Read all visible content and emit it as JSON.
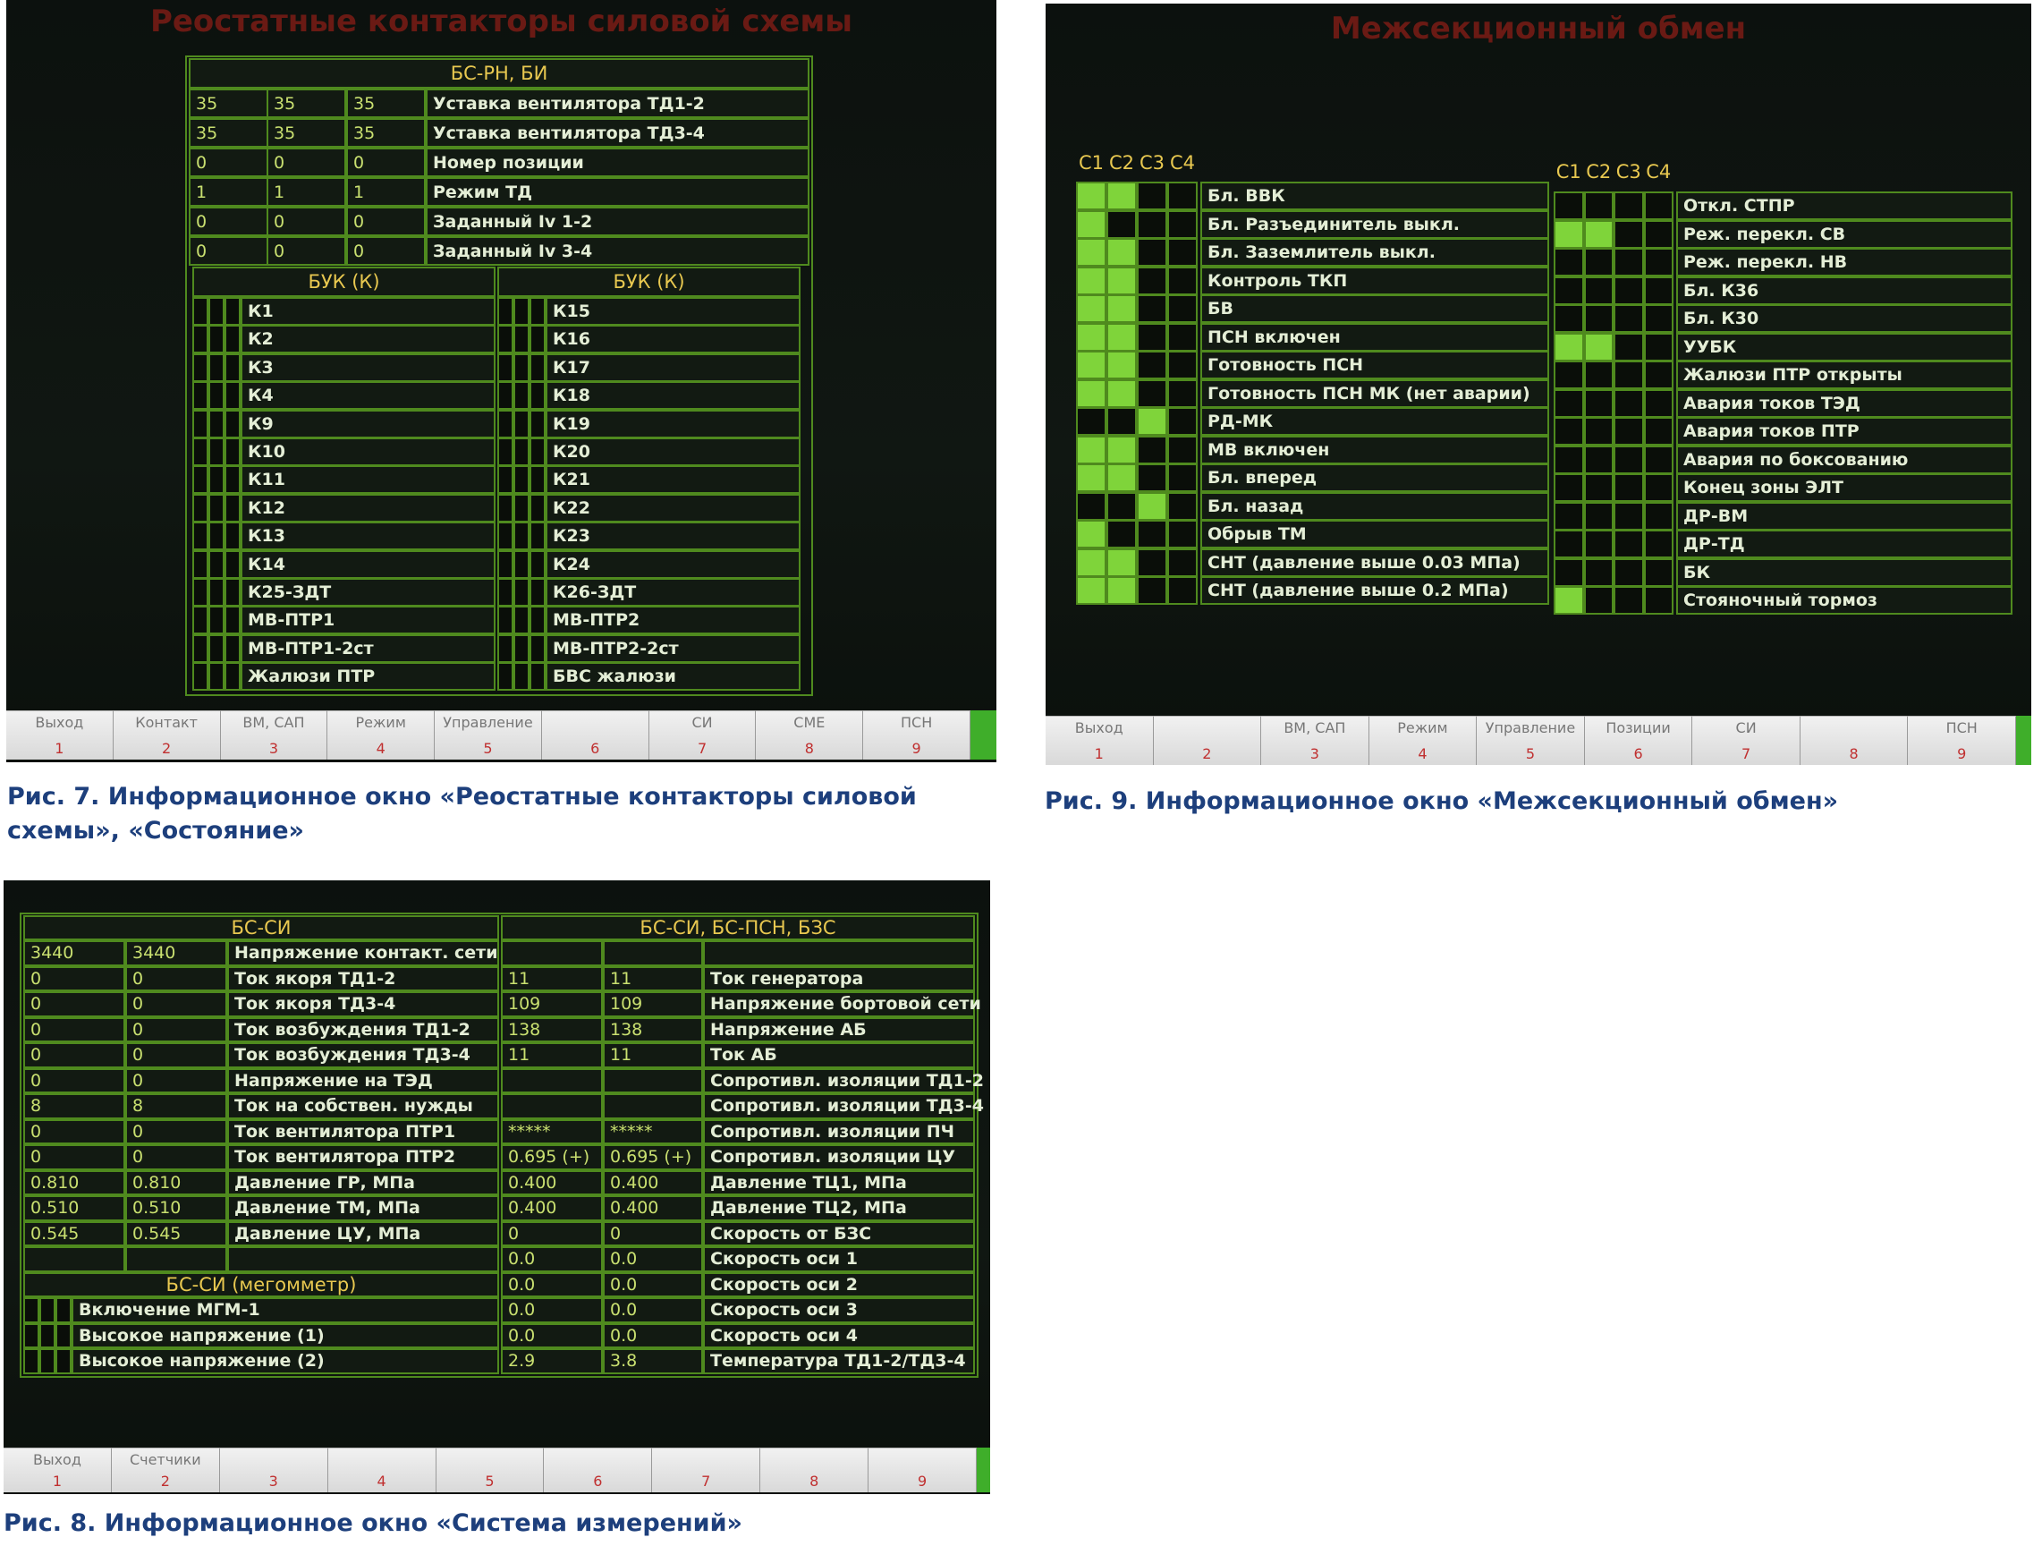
{
  "fig7": {
    "title": "Реостатные контакторы силовой схемы",
    "block": {
      "header": "БС-РН, БИ",
      "rows": [
        {
          "values": [
            "35",
            "35",
            "35"
          ],
          "label": "Уставка вентилятора ТД1-2"
        },
        {
          "values": [
            "35",
            "35",
            "35"
          ],
          "label": "Уставка вентилятора ТД3-4"
        },
        {
          "values": [
            "0",
            "0",
            "0"
          ],
          "label": "Номер позиции"
        },
        {
          "values": [
            "1",
            "1",
            "1"
          ],
          "label": "Режим ТД"
        },
        {
          "values": [
            "0",
            "0",
            "0"
          ],
          "label": "Заданный Iv 1-2"
        },
        {
          "values": [
            "0",
            "0",
            "0"
          ],
          "label": "Заданный Iv 3-4"
        }
      ]
    },
    "buk": {
      "left": {
        "header": "БУК (К)",
        "items": [
          "К1",
          "К2",
          "К3",
          "К4",
          "К9",
          "К10",
          "К11",
          "К12",
          "К13",
          "К14",
          "К25-ЗДТ",
          "МВ-ПТР1",
          "МВ-ПТР1-2ст",
          "Жалюзи ПТР"
        ]
      },
      "right": {
        "header": "БУК (К)",
        "items": [
          "К15",
          "К16",
          "К17",
          "К18",
          "К19",
          "К20",
          "К21",
          "К22",
          "К23",
          "К24",
          "К26-ЗДТ",
          "МВ-ПТР2",
          "МВ-ПТР2-2ст",
          "БВС жалюзи"
        ]
      }
    },
    "buttons": [
      {
        "label": "Выход",
        "key": "1"
      },
      {
        "label": "Контакт",
        "key": "2"
      },
      {
        "label": "ВМ, САП",
        "key": "3"
      },
      {
        "label": "Режим",
        "key": "4"
      },
      {
        "label": "Управление",
        "key": "5"
      },
      {
        "label": null,
        "key": "6"
      },
      {
        "label": "СИ",
        "key": "7"
      },
      {
        "label": "СМЕ",
        "key": "8"
      },
      {
        "label": "ПСН",
        "key": "9"
      }
    ],
    "caption": "Рис. 7. Информационное окно «Реостатные контакторы силовой схемы», «Состояние»"
  },
  "fig9": {
    "title": "Межсекционный обмен",
    "left": {
      "columns": [
        "С1",
        "С2",
        "С3",
        "С4"
      ],
      "rows": [
        {
          "label": "Бл. ВВК",
          "states": [
            true,
            true,
            false,
            false
          ]
        },
        {
          "label": "Бл. Разъединитель выкл.",
          "states": [
            true,
            false,
            false,
            false
          ]
        },
        {
          "label": "Бл. Заземлитель выкл.",
          "states": [
            true,
            true,
            false,
            false
          ]
        },
        {
          "label": "Контроль ТКП",
          "states": [
            true,
            true,
            false,
            false
          ]
        },
        {
          "label": "БВ",
          "states": [
            true,
            true,
            false,
            false
          ]
        },
        {
          "label": "ПСН включен",
          "states": [
            true,
            true,
            false,
            false
          ]
        },
        {
          "label": "Готовность ПСН",
          "states": [
            true,
            true,
            false,
            false
          ]
        },
        {
          "label": "Готовность ПСН МК (нет аварии)",
          "states": [
            true,
            true,
            false,
            false
          ]
        },
        {
          "label": "РД-МК",
          "states": [
            false,
            false,
            true,
            false
          ]
        },
        {
          "label": "МВ включен",
          "states": [
            true,
            true,
            false,
            false
          ]
        },
        {
          "label": "Бл. вперед",
          "states": [
            true,
            true,
            false,
            false
          ]
        },
        {
          "label": "Бл. назад",
          "states": [
            false,
            false,
            true,
            false
          ]
        },
        {
          "label": "Обрыв ТМ",
          "states": [
            true,
            false,
            false,
            false
          ]
        },
        {
          "label": "СНТ (давление выше 0.03 МПа)",
          "states": [
            true,
            true,
            false,
            false
          ]
        },
        {
          "label": "СНТ (давление выше 0.2 МПа)",
          "states": [
            true,
            true,
            false,
            false
          ]
        }
      ]
    },
    "right": {
      "columns": [
        "С1",
        "С2",
        "С3",
        "С4"
      ],
      "rows": [
        {
          "label": "Откл. СТПР",
          "states": [
            false,
            false,
            false,
            false
          ]
        },
        {
          "label": "Реж. перекл. СВ",
          "states": [
            true,
            true,
            false,
            false
          ]
        },
        {
          "label": "Реж. перекл. НВ",
          "states": [
            false,
            false,
            false,
            false
          ]
        },
        {
          "label": "Бл. К36",
          "states": [
            false,
            false,
            false,
            false
          ]
        },
        {
          "label": "Бл. К30",
          "states": [
            false,
            false,
            false,
            false
          ]
        },
        {
          "label": "УУБК",
          "states": [
            true,
            true,
            false,
            false
          ]
        },
        {
          "label": "Жалюзи ПТР открыты",
          "states": [
            false,
            false,
            false,
            false
          ]
        },
        {
          "label": "Авария токов ТЭД",
          "states": [
            false,
            false,
            false,
            false
          ]
        },
        {
          "label": "Авария токов ПТР",
          "states": [
            false,
            false,
            false,
            false
          ]
        },
        {
          "label": "Авария по боксованию",
          "states": [
            false,
            false,
            false,
            false
          ]
        },
        {
          "label": "Конец зоны ЭЛТ",
          "states": [
            false,
            false,
            false,
            false
          ]
        },
        {
          "label": "ДР-ВМ",
          "states": [
            false,
            false,
            false,
            false
          ]
        },
        {
          "label": "ДР-ТД",
          "states": [
            false,
            false,
            false,
            false
          ]
        },
        {
          "label": "БК",
          "states": [
            false,
            false,
            false,
            false
          ]
        },
        {
          "label": "Стояночный тормоз",
          "states": [
            true,
            false,
            false,
            false
          ]
        }
      ]
    },
    "buttons": [
      {
        "label": "Выход",
        "key": "1"
      },
      {
        "label": null,
        "key": "2"
      },
      {
        "label": "ВМ, САП",
        "key": "3"
      },
      {
        "label": "Режим",
        "key": "4"
      },
      {
        "label": "Управление",
        "key": "5"
      },
      {
        "label": "Позиции",
        "key": "6"
      },
      {
        "label": "СИ",
        "key": "7"
      },
      {
        "label": null,
        "key": "8"
      },
      {
        "label": "ПСН",
        "key": "9"
      }
    ],
    "caption": "Рис. 9. Информационное окно «Межсекционный обмен»"
  },
  "fig8": {
    "left": {
      "header": "БС-СИ",
      "rows": [
        {
          "values": [
            "3440",
            "3440"
          ],
          "label": "Напряжение контакт. сети"
        },
        {
          "values": [
            "0",
            "0"
          ],
          "label": "Ток якоря ТД1-2"
        },
        {
          "values": [
            "0",
            "0"
          ],
          "label": "Ток якоря ТД3-4"
        },
        {
          "values": [
            "0",
            "0"
          ],
          "label": "Ток возбуждения ТД1-2"
        },
        {
          "values": [
            "0",
            "0"
          ],
          "label": "Ток возбуждения ТД3-4"
        },
        {
          "values": [
            "0",
            "0"
          ],
          "label": "Напряжение на ТЭД"
        },
        {
          "values": [
            "8",
            "8"
          ],
          "label": "Ток на собствен. нужды"
        },
        {
          "values": [
            "0",
            "0"
          ],
          "label": "Ток вентилятора ПТР1"
        },
        {
          "values": [
            "0",
            "0"
          ],
          "label": "Ток вентилятора ПТР2"
        },
        {
          "values": [
            "0.810",
            "0.810"
          ],
          "label": "Давление ГР, МПа"
        },
        {
          "values": [
            "0.510",
            "0.510"
          ],
          "label": "Давление ТМ, МПа"
        },
        {
          "values": [
            "0.545",
            "0.545"
          ],
          "label": "Давление ЦУ, МПа"
        }
      ]
    },
    "megger": {
      "header": "БС-СИ (мегомметр)",
      "rows": [
        "Включение МГМ-1",
        "Высокое напряжение (1)",
        "Высокое напряжение (2)"
      ]
    },
    "right": {
      "header": "БС-СИ, БС-ПСН, БЗС",
      "rows": [
        {
          "values": [
            "11",
            "11"
          ],
          "label": "Ток генератора"
        },
        {
          "values": [
            "109",
            "109"
          ],
          "label": "Напряжение бортовой сети"
        },
        {
          "values": [
            "138",
            "138"
          ],
          "label": "Напряжение АБ"
        },
        {
          "values": [
            "11",
            "11"
          ],
          "label": "Ток АБ"
        },
        {
          "values": [
            null,
            null
          ],
          "label": "Сопротивл. изоляции ТД1-2"
        },
        {
          "values": [
            null,
            null
          ],
          "label": "Сопротивл. изоляции ТД3-4"
        },
        {
          "values": [
            "*****",
            "*****"
          ],
          "label": "Сопротивл. изоляции ПЧ"
        },
        {
          "values": [
            "0.695 (+)",
            "0.695 (+)"
          ],
          "label": "Сопротивл. изоляции ЦУ"
        },
        {
          "values": [
            "0.400",
            "0.400"
          ],
          "label": "Давление ТЦ1, МПа"
        },
        {
          "values": [
            "0.400",
            "0.400"
          ],
          "label": "Давление ТЦ2, МПа"
        },
        {
          "values": [
            "0",
            "0"
          ],
          "label": "Скорость от БЗС"
        },
        {
          "values": [
            "0.0",
            "0.0"
          ],
          "label": "Скорость оси 1"
        },
        {
          "values": [
            "0.0",
            "0.0"
          ],
          "label": "Скорость оси 2"
        },
        {
          "values": [
            "0.0",
            "0.0"
          ],
          "label": "Скорость оси 3"
        },
        {
          "values": [
            "0.0",
            "0.0"
          ],
          "label": "Скорость оси 4"
        },
        {
          "values": [
            "2.9",
            "3.8"
          ],
          "label": "Температура ТД1-2/ТД3-4"
        }
      ]
    },
    "buttons": [
      {
        "label": "Выход",
        "key": "1"
      },
      {
        "label": "Счетчики",
        "key": "2"
      },
      {
        "label": null,
        "key": "3"
      },
      {
        "label": null,
        "key": "4"
      },
      {
        "label": null,
        "key": "5"
      },
      {
        "label": null,
        "key": "6"
      },
      {
        "label": null,
        "key": "7"
      },
      {
        "label": null,
        "key": "8"
      },
      {
        "label": null,
        "key": "9"
      }
    ],
    "caption": "Рис. 8. Информационное окно «Система измерений»"
  }
}
